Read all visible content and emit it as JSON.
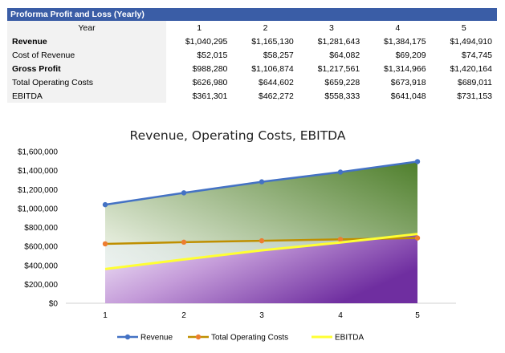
{
  "table": {
    "title": "Proforma Profit and Loss (Yearly)",
    "header_label": "Year",
    "years": [
      "1",
      "2",
      "3",
      "4",
      "5"
    ],
    "rows": [
      {
        "label": "Revenue",
        "bold": true,
        "values": [
          "$1,040,295",
          "$1,165,130",
          "$1,281,643",
          "$1,384,175",
          "$1,494,910"
        ]
      },
      {
        "label": "Cost of Revenue",
        "bold": false,
        "values": [
          "$52,015",
          "$58,257",
          "$64,082",
          "$69,209",
          "$74,745"
        ]
      },
      {
        "label": "Gross Profit",
        "bold": true,
        "values": [
          "$988,280",
          "$1,106,874",
          "$1,217,561",
          "$1,314,966",
          "$1,420,164"
        ]
      },
      {
        "label": "Total Operating Costs",
        "bold": false,
        "values": [
          "$626,980",
          "$644,602",
          "$659,228",
          "$673,918",
          "$689,011"
        ]
      },
      {
        "label": "EBITDA",
        "bold": false,
        "values": [
          "$361,301",
          "$462,272",
          "$558,333",
          "$641,048",
          "$731,153"
        ]
      }
    ]
  },
  "chart_data": {
    "type": "line",
    "title": "Revenue, Operating Costs, EBITDA",
    "x": [
      "1",
      "2",
      "3",
      "4",
      "5"
    ],
    "ylim": [
      0,
      1600000
    ],
    "yticks": [
      0,
      200000,
      400000,
      600000,
      800000,
      1000000,
      1200000,
      1400000,
      1600000
    ],
    "ytick_labels": [
      "$0",
      "$200,000",
      "$400,000",
      "$600,000",
      "$800,000",
      "$1,000,000",
      "$1,200,000",
      "$1,400,000",
      "$1,600,000"
    ],
    "grid": false,
    "legend_position": "bottom",
    "series": [
      {
        "name": "Revenue",
        "values": [
          1040295,
          1165130,
          1281643,
          1384175,
          1494910
        ],
        "color": "#4472c4",
        "markers": true
      },
      {
        "name": "Total Operating Costs",
        "values": [
          626980,
          644602,
          659228,
          673918,
          689011
        ],
        "color": "#bf8f00",
        "marker_color": "#ed7d31",
        "markers": true
      },
      {
        "name": "EBITDA",
        "values": [
          361301,
          462272,
          558333,
          641048,
          731153
        ],
        "color": "#ffff33",
        "markers": false
      }
    ],
    "area_fills": [
      "#548235",
      "#7030a0"
    ]
  }
}
